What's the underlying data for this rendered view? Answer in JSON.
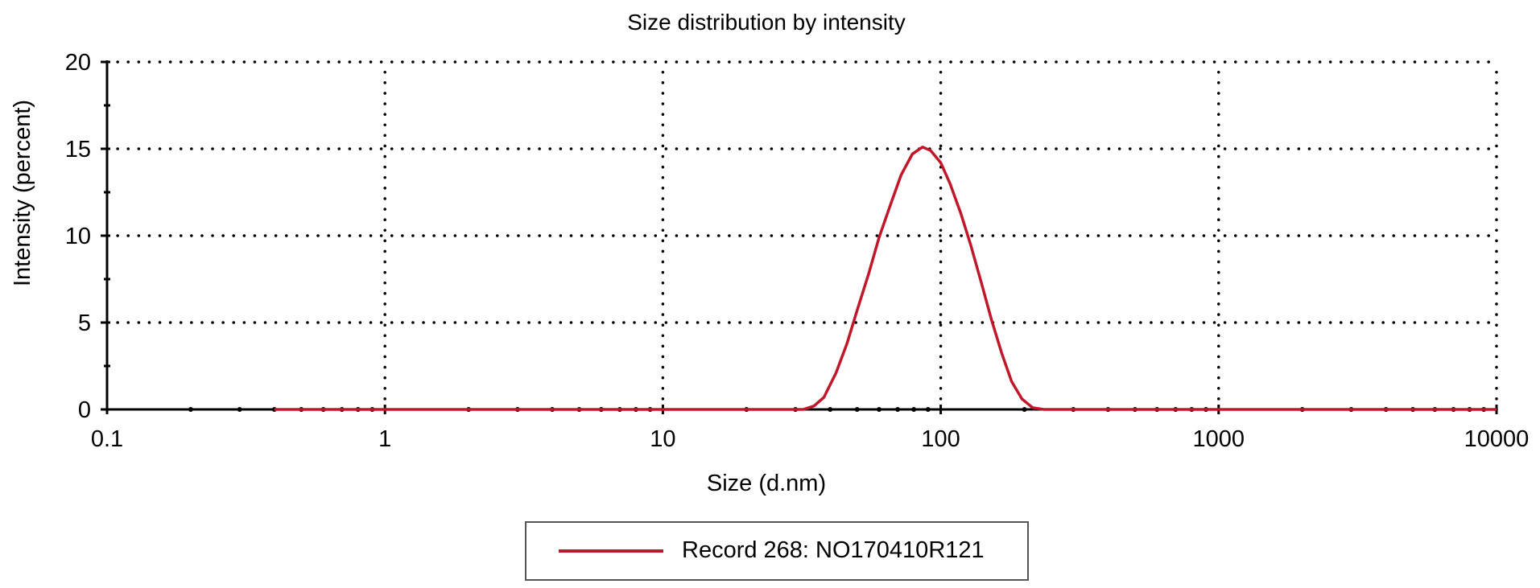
{
  "chart_data": {
    "type": "line",
    "title": "Size distribution by intensity",
    "xlabel": "Size (d.nm)",
    "ylabel": "Intensity (percent)",
    "xscale": "log",
    "xlim": [
      0.1,
      10000
    ],
    "ylim": [
      0,
      20
    ],
    "xticks": [
      "0.1",
      "1",
      "10",
      "100",
      "1000",
      "10000"
    ],
    "yticks": [
      "0",
      "5",
      "10",
      "15",
      "20"
    ],
    "grid": true,
    "legend_position": "bottom-center",
    "series": [
      {
        "name": "Record 268: NO170410R121",
        "color": "#c0182a",
        "x": [
          0.4,
          1,
          10,
          32,
          35,
          38,
          42,
          46,
          50,
          55,
          60,
          66,
          72,
          79,
          86,
          92,
          100,
          108,
          118,
          128,
          140,
          152,
          166,
          180,
          196,
          214,
          235,
          300,
          1000,
          10000
        ],
        "y": [
          0,
          0,
          0,
          0,
          0.2,
          0.7,
          2.1,
          3.8,
          5.7,
          7.8,
          9.9,
          11.8,
          13.5,
          14.7,
          15.1,
          14.9,
          14.2,
          13.0,
          11.3,
          9.5,
          7.3,
          5.2,
          3.2,
          1.6,
          0.6,
          0.1,
          0,
          0,
          0,
          0
        ]
      }
    ]
  }
}
